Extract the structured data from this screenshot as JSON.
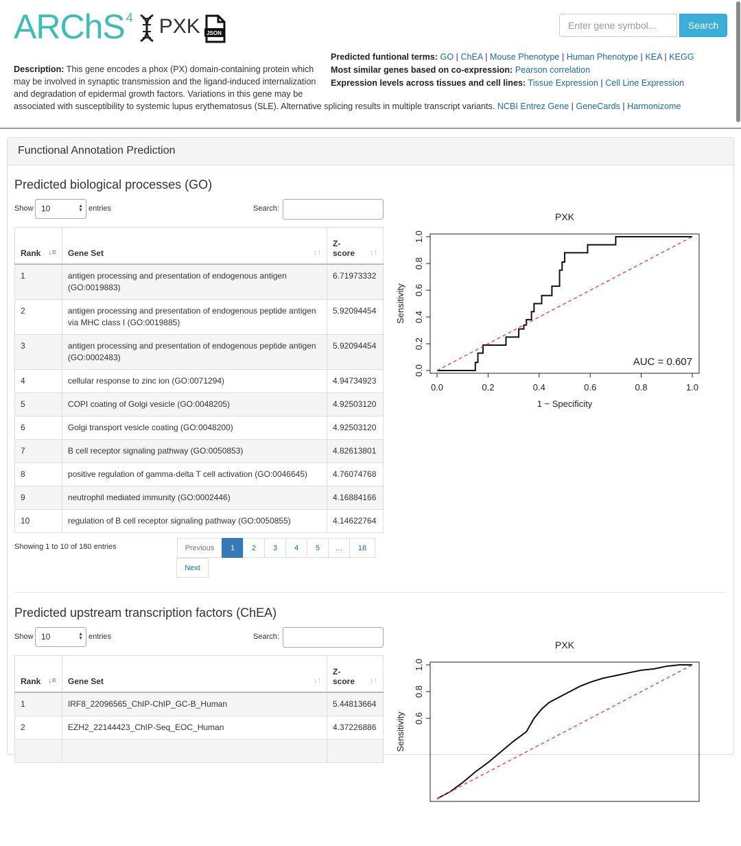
{
  "header": {
    "logo_text": "ARChS",
    "logo_sup": "4",
    "gene": "PXK",
    "json_label": "JSON",
    "search_placeholder": "Enter gene symbol...",
    "search_button": "Search"
  },
  "description": {
    "label": "Description:",
    "text": "This gene encodes a phox (PX) domain-containing protein which may be involved in synaptic transmission and the ligand-induced internalization and degradation of epidermal growth factors. Variations in this gene may be associated with susceptibility to systemic lupus erythematosus (SLE). Alternative splicing results in multiple transcript variants.",
    "links": [
      "NCBI Entrez Gene",
      "GeneCards",
      "Harmonizome"
    ]
  },
  "side_info": {
    "terms_label": "Predicted funtional terms:",
    "terms": [
      "GO",
      "ChEA",
      "Mouse Phenotype",
      "Human Phenotype",
      "KEA",
      "KEGG"
    ],
    "coexp_label": "Most similar genes based on co-expression:",
    "coexp_link": "Pearson correlation",
    "expr_label": "Expression levels across tissues and cell lines:",
    "expr_links": [
      "Tissue Expression",
      "Cell Line Expression"
    ]
  },
  "panel": {
    "title": "Functional Annotation Prediction"
  },
  "go_section": {
    "title": "Predicted biological processes (GO)",
    "show_label": "Show",
    "entries_label": "entries",
    "length_value": "10",
    "search_label": "Search:",
    "columns": [
      "Rank",
      "Gene Set",
      "Z-score"
    ],
    "rows": [
      {
        "rank": "1",
        "set": "antigen processing and presentation of endogenous antigen (GO:0019883)",
        "z": "6.71973332"
      },
      {
        "rank": "2",
        "set": "antigen processing and presentation of endogenous peptide antigen via MHC class I (GO:0019885)",
        "z": "5.92094454"
      },
      {
        "rank": "3",
        "set": "antigen processing and presentation of endogenous peptide antigen (GO:0002483)",
        "z": "5.92094454"
      },
      {
        "rank": "4",
        "set": "cellular response to zinc ion (GO:0071294)",
        "z": "4.94734923"
      },
      {
        "rank": "5",
        "set": "COPI coating of Golgi vesicle (GO:0048205)",
        "z": "4.92503120"
      },
      {
        "rank": "6",
        "set": "Golgi transport vesicle coating (GO:0048200)",
        "z": "4.92503120"
      },
      {
        "rank": "7",
        "set": "B cell receptor signaling pathway (GO:0050853)",
        "z": "4.82613801"
      },
      {
        "rank": "8",
        "set": "positive regulation of gamma-delta T cell activation (GO:0046645)",
        "z": "4.76074768"
      },
      {
        "rank": "9",
        "set": "neutrophil mediated immunity (GO:0002446)",
        "z": "4.16884166"
      },
      {
        "rank": "10",
        "set": "regulation of B cell receptor signaling pathway (GO:0050855)",
        "z": "4.14622764"
      }
    ],
    "info": "Showing 1 to 10 of 180 entries",
    "pages": [
      "Previous",
      "1",
      "2",
      "3",
      "4",
      "5",
      "…",
      "18",
      "Next"
    ]
  },
  "chea_section": {
    "title": "Predicted upstream transcription factors (ChEA)",
    "show_label": "Show",
    "entries_label": "entries",
    "length_value": "10",
    "search_label": "Search:",
    "columns": [
      "Rank",
      "Gene Set",
      "Z-score"
    ],
    "rows": [
      {
        "rank": "1",
        "set": "IRF8_22096565_ChIP-ChIP_GC-B_Human",
        "z": "5.44813664"
      },
      {
        "rank": "2",
        "set": "EZH2_22144423_ChIP-Seq_EOC_Human",
        "z": "4.37226886"
      }
    ]
  },
  "chart_data": [
    {
      "type": "line",
      "title": "PXK",
      "xlabel": "1 − Specificity",
      "ylabel": "Sensitivity",
      "xlim": [
        0,
        1
      ],
      "ylim": [
        0,
        1
      ],
      "xticks": [
        "0.0",
        "0.2",
        "0.4",
        "0.6",
        "0.8",
        "1.0"
      ],
      "yticks": [
        "0.0",
        "0.2",
        "0.4",
        "0.6",
        "0.8",
        "1.0"
      ],
      "annotation": "AUC = 0.607",
      "series": [
        {
          "name": "ROC",
          "x": [
            0,
            0.15,
            0.15,
            0.16,
            0.16,
            0.18,
            0.18,
            0.27,
            0.27,
            0.32,
            0.32,
            0.34,
            0.34,
            0.35,
            0.35,
            0.37,
            0.37,
            0.38,
            0.38,
            0.41,
            0.41,
            0.45,
            0.45,
            0.48,
            0.48,
            0.49,
            0.49,
            0.5,
            0.5,
            0.59,
            0.59,
            0.7,
            0.7,
            1.0
          ],
          "y": [
            0,
            0,
            0.06,
            0.06,
            0.13,
            0.13,
            0.19,
            0.19,
            0.25,
            0.25,
            0.31,
            0.31,
            0.34,
            0.34,
            0.38,
            0.38,
            0.44,
            0.44,
            0.5,
            0.5,
            0.56,
            0.56,
            0.63,
            0.63,
            0.75,
            0.75,
            0.81,
            0.81,
            0.88,
            0.88,
            0.94,
            0.94,
            1.0,
            1.0
          ]
        },
        {
          "name": "chance",
          "x": [
            0,
            1
          ],
          "y": [
            0,
            1
          ]
        }
      ]
    },
    {
      "type": "line",
      "title": "PXK",
      "xlabel": "",
      "ylabel": "Sensitivity",
      "xlim": [
        0,
        1
      ],
      "ylim": [
        0,
        1
      ],
      "yticks": [
        "0.6",
        "0.8",
        "1.0"
      ],
      "series": [
        {
          "name": "ROC",
          "x": [
            0.0,
            0.05,
            0.1,
            0.15,
            0.2,
            0.25,
            0.3,
            0.35,
            0.38,
            0.41,
            0.44,
            0.48,
            0.52,
            0.56,
            0.6,
            0.65,
            0.7,
            0.75,
            0.8,
            0.85,
            0.9,
            0.95,
            1.0
          ],
          "y": [
            0.0,
            0.05,
            0.12,
            0.2,
            0.27,
            0.35,
            0.43,
            0.5,
            0.6,
            0.67,
            0.72,
            0.76,
            0.8,
            0.84,
            0.87,
            0.9,
            0.92,
            0.94,
            0.96,
            0.97,
            0.99,
            1.0,
            1.0
          ]
        },
        {
          "name": "chance",
          "x": [
            0,
            1
          ],
          "y": [
            0,
            1
          ]
        }
      ]
    }
  ]
}
